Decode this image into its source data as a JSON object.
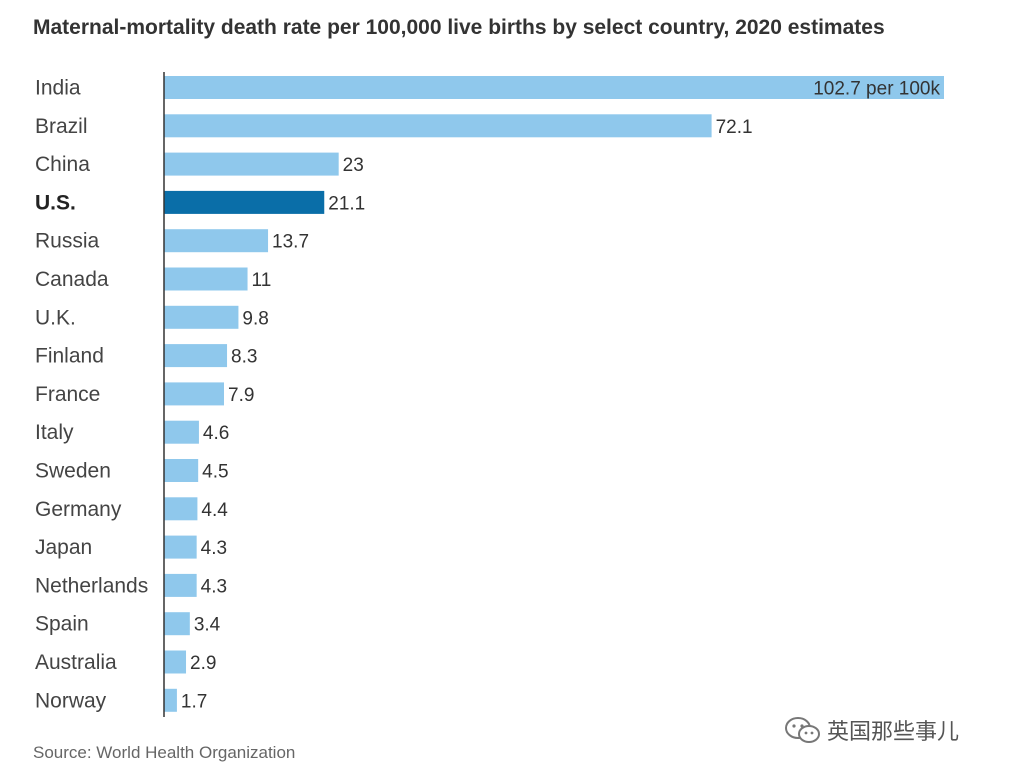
{
  "chart_data": {
    "type": "bar",
    "orientation": "horizontal",
    "title": "Maternal-mortality death rate per 100,000 live births by select country, 2020 estimates",
    "categories": [
      "India",
      "Brazil",
      "China",
      "U.S.",
      "Russia",
      "Canada",
      "U.K.",
      "Finland",
      "France",
      "Italy",
      "Sweden",
      "Germany",
      "Japan",
      "Netherlands",
      "Spain",
      "Australia",
      "Norway"
    ],
    "values": [
      102.7,
      72.1,
      23,
      21.1,
      13.7,
      11,
      9.8,
      8.3,
      7.9,
      4.6,
      4.5,
      4.4,
      4.3,
      4.3,
      3.4,
      2.9,
      1.7
    ],
    "value_labels": [
      "102.7 per 100k",
      "72.1",
      "23",
      "21.1",
      "13.7",
      "11",
      "9.8",
      "8.3",
      "7.9",
      "4.6",
      "4.5",
      "4.4",
      "4.3",
      "4.3",
      "3.4",
      "2.9",
      "1.7"
    ],
    "highlight": "U.S.",
    "xlim": [
      0,
      102.7
    ],
    "colors": {
      "bar": "#8fc8ec",
      "highlight": "#0a6ea8",
      "axis": "#333333"
    },
    "source": "Source: World Health Organization"
  },
  "watermark": {
    "icon": "wechat-icon",
    "text": "英国那些事儿"
  }
}
